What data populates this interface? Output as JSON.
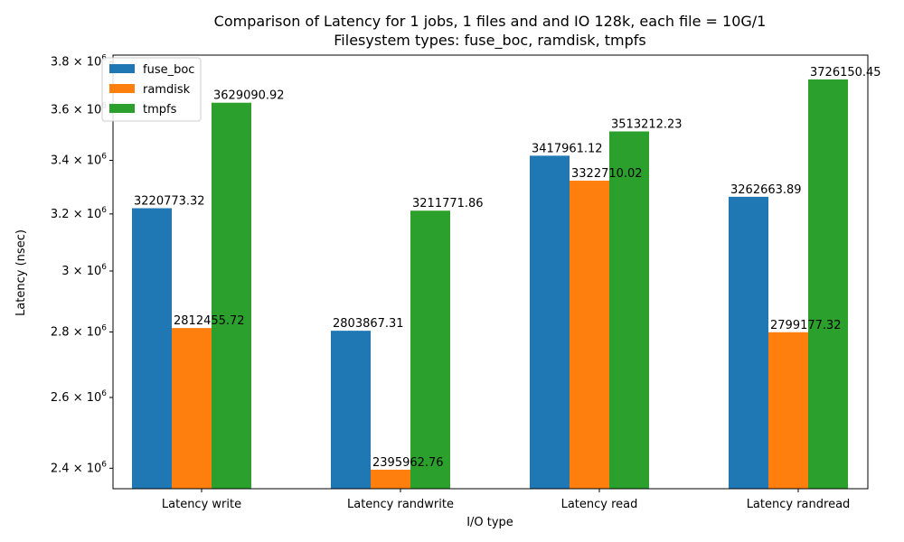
{
  "chart_data": {
    "type": "bar",
    "title_line1": "Comparison of Latency for 1 jobs, 1 files and  and IO 128k, each file = 10G/1",
    "title_line2": "Filesystem types: fuse_boc, ramdisk, tmpfs",
    "xlabel": "I/O type",
    "ylabel": "Latency (nsec)",
    "y_scale": "log",
    "ylim": [
      2345000,
      3830000
    ],
    "y_ticks": [
      {
        "value": 2400000,
        "mantissa": "2.4"
      },
      {
        "value": 2600000,
        "mantissa": "2.6"
      },
      {
        "value": 2800000,
        "mantissa": "2.8"
      },
      {
        "value": 3000000,
        "mantissa": "3"
      },
      {
        "value": 3200000,
        "mantissa": "3.2"
      },
      {
        "value": 3400000,
        "mantissa": "3.4"
      },
      {
        "value": 3600000,
        "mantissa": "3.6"
      },
      {
        "value": 3800000,
        "mantissa": "3.8"
      }
    ],
    "y_tick_suffix": "× 10",
    "y_tick_exponent": "6",
    "categories": [
      "Latency write",
      "Latency randwrite",
      "Latency read",
      "Latency randread"
    ],
    "series": [
      {
        "name": "fuse_boc",
        "color": "#1f77b4",
        "values": [
          3220773.32,
          2803867.31,
          3417961.12,
          3262663.89
        ],
        "labels": [
          "3220773.32",
          "2803867.31",
          "3417961.12",
          "3262663.89"
        ]
      },
      {
        "name": "ramdisk",
        "color": "#ff7f0e",
        "values": [
          2812455.72,
          2395962.76,
          3322710.02,
          2799177.32
        ],
        "labels": [
          "2812455.72",
          "2395962.76",
          "3322710.02",
          "2799177.32"
        ]
      },
      {
        "name": "tmpfs",
        "color": "#2ca02c",
        "values": [
          3629090.92,
          3211771.86,
          3513212.23,
          3726150.45
        ],
        "labels": [
          "3629090.92",
          "3211771.86",
          "3513212.23",
          "3726150.45"
        ]
      }
    ],
    "legend_position": "top-left",
    "grid": false
  }
}
